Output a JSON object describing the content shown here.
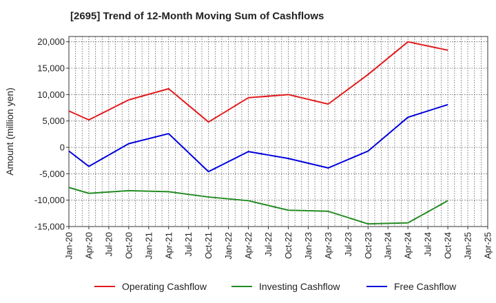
{
  "title": "[2695]  Trend of 12-Month Moving Sum of Cashflows",
  "chart_data": {
    "type": "line",
    "title": "[2695]  Trend of 12-Month Moving Sum of Cashflows",
    "xlabel": "",
    "ylabel": "Amount (million yen)",
    "ylim": [
      -15000,
      21000
    ],
    "yticks": [
      -15000,
      -10000,
      -5000,
      0,
      5000,
      10000,
      15000,
      20000
    ],
    "ytick_labels": [
      "-15,000",
      "-10,000",
      "-5,000",
      "0",
      "5,000",
      "10,000",
      "15,000",
      "20,000"
    ],
    "x_ticks": [
      "Jan-20",
      "Apr-20",
      "Jul-20",
      "Oct-20",
      "Jan-21",
      "Apr-21",
      "Jul-21",
      "Oct-21",
      "Jan-22",
      "Apr-22",
      "Jul-22",
      "Oct-22",
      "Jan-23",
      "Apr-23",
      "Jul-23",
      "Oct-23",
      "Jan-24",
      "Apr-24",
      "Jul-24",
      "Oct-24",
      "Jan-25",
      "Apr-25"
    ],
    "grid": true,
    "legend_position": "bottom",
    "series": [
      {
        "name": "Operating Cashflow",
        "color": "#e31a1c",
        "x": [
          "Jan-20",
          "Apr-20",
          "Oct-20",
          "Apr-21",
          "Oct-21",
          "Apr-22",
          "Oct-22",
          "Apr-23",
          "Oct-23",
          "Apr-24",
          "Oct-24"
        ],
        "values": [
          6900,
          5200,
          9000,
          11100,
          4800,
          9400,
          10000,
          8200,
          13800,
          20000,
          18400
        ]
      },
      {
        "name": "Investing Cashflow",
        "color": "#228b22",
        "x": [
          "Jan-20",
          "Apr-20",
          "Oct-20",
          "Apr-21",
          "Oct-21",
          "Apr-22",
          "Oct-22",
          "Apr-23",
          "Oct-23",
          "Apr-24",
          "Oct-24"
        ],
        "values": [
          -7600,
          -8700,
          -8200,
          -8400,
          -9400,
          -10100,
          -11900,
          -12100,
          -14500,
          -14300,
          -10100
        ]
      },
      {
        "name": "Free Cashflow",
        "color": "#0000dd",
        "x": [
          "Jan-20",
          "Apr-20",
          "Oct-20",
          "Apr-21",
          "Oct-21",
          "Apr-22",
          "Oct-22",
          "Apr-23",
          "Oct-23",
          "Apr-24",
          "Oct-24"
        ],
        "values": [
          -700,
          -3600,
          700,
          2600,
          -4600,
          -800,
          -2100,
          -3900,
          -700,
          5700,
          8100
        ]
      }
    ]
  }
}
